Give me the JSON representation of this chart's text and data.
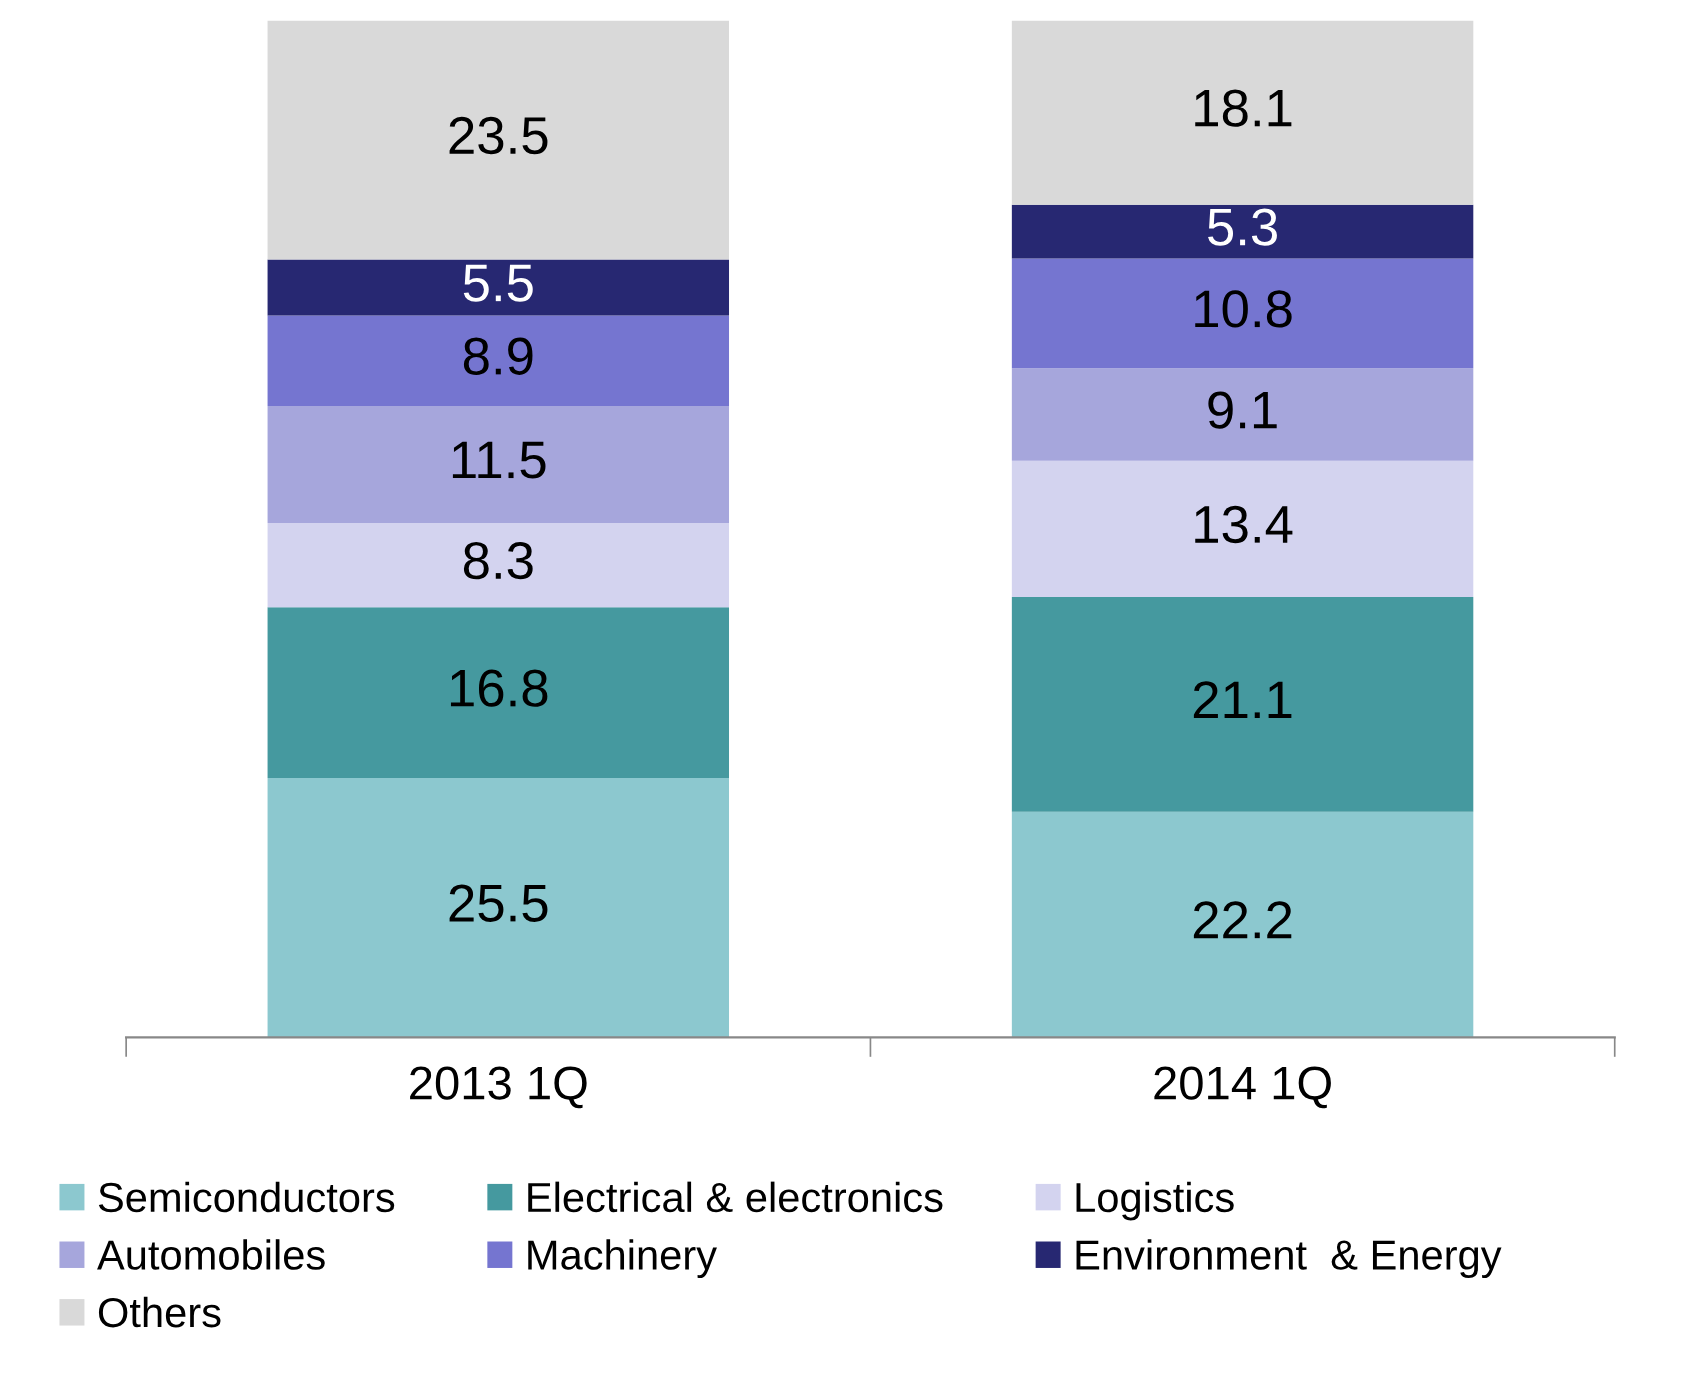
{
  "chart_data": {
    "type": "bar",
    "stacked": true,
    "data_labels": true,
    "legend": "bottom",
    "grid": false,
    "tick_labels": "x",
    "categories": [
      "2013 1Q",
      "2014 1Q"
    ],
    "series": [
      {
        "name": "Semiconductors",
        "color": "#8cc8cf",
        "values": [
          25.5,
          22.2
        ]
      },
      {
        "name": "Electrical & electronics",
        "color": "#45999f",
        "values": [
          16.8,
          21.1
        ]
      },
      {
        "name": "Logistics",
        "color": "#d3d3ef",
        "values": [
          8.3,
          13.4
        ]
      },
      {
        "name": "Automobiles",
        "color": "#a6a6dc",
        "values": [
          11.5,
          9.1
        ]
      },
      {
        "name": "Machinery",
        "color": "#7575d0",
        "values": [
          8.9,
          10.8
        ]
      },
      {
        "name": "Environment  & Energy",
        "color": "#272872",
        "values": [
          5.5,
          5.3
        ]
      },
      {
        "name": "Others",
        "color": "#d9d9d9",
        "values": [
          23.5,
          18.1
        ]
      }
    ]
  }
}
